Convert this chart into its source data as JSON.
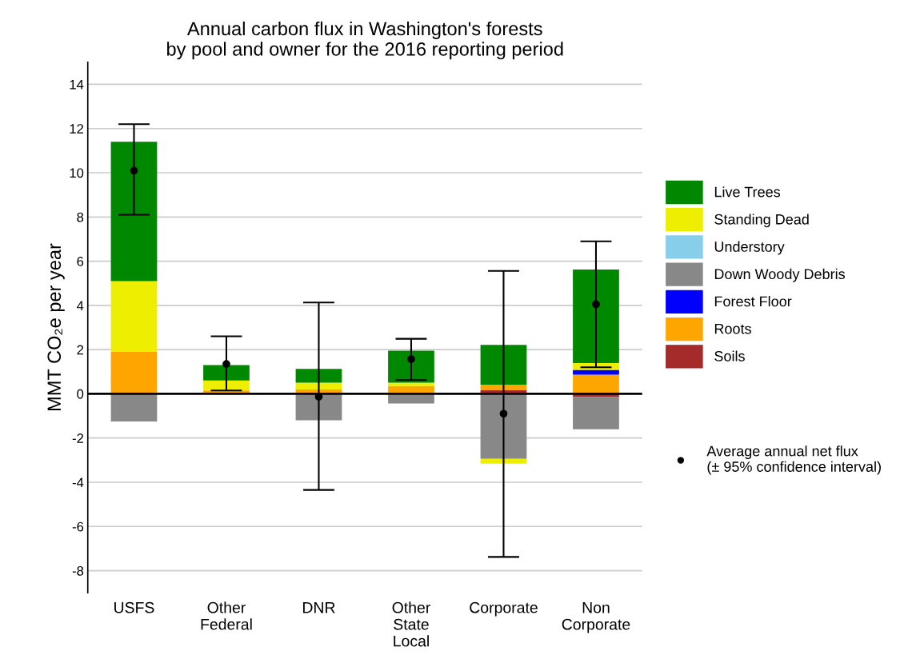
{
  "chart_data": {
    "type": "bar",
    "stacked": true,
    "title": "Annual carbon flux in Washington's forests\nby pool and owner for the 2016 reporting period",
    "ylabel": "MMT CO₂e per year",
    "categories": [
      "USFS",
      "Other\nFederal",
      "DNR",
      "Other\nState\nLocal",
      "Corporate",
      "Non\nCorporate"
    ],
    "series": [
      {
        "name": "Soils",
        "color": "#a52a2a",
        "values": [
          0,
          0,
          0,
          0.05,
          0.17,
          -0.15
        ]
      },
      {
        "name": "Roots",
        "color": "#ffa500",
        "values": [
          1.9,
          0.15,
          0.2,
          0.3,
          0.24,
          0.87
        ]
      },
      {
        "name": "Forest Floor",
        "color": "#0000ff",
        "values": [
          null,
          null,
          null,
          0,
          0,
          0.21
        ]
      },
      {
        "name": "Down Woody Debris",
        "color": "#888888",
        "values": [
          -1.25,
          0,
          -1.2,
          -0.44,
          -2.94,
          -1.45
        ]
      },
      {
        "name": "Understory",
        "color": "#87ceeb",
        "values": [
          0,
          0,
          0,
          0,
          0,
          0
        ]
      },
      {
        "name": "Standing Dead",
        "color": "#eeee00",
        "values": [
          3.2,
          0.45,
          0.3,
          0.15,
          -0.22,
          0.31
        ]
      },
      {
        "name": "Live Trees",
        "color": "#008800",
        "values": [
          6.3,
          0.7,
          0.63,
          1.45,
          1.8,
          4.23
        ]
      },
      {
        "name": "Average annual net flux",
        "type": "scatter",
        "color": "#000000",
        "marker": "circle",
        "x": [
          "USFS",
          "Other\nFederal",
          "DNR",
          "Other\nState\nLocal",
          "Corporate",
          "Non\nCorporate"
        ],
        "values": [
          10.1,
          1.35,
          -0.13,
          1.57,
          -0.9,
          4.05
        ],
        "errors": [
          [
            8.1,
            12.2
          ],
          [
            0.15,
            2.6
          ],
          [
            -4.35,
            4.13
          ],
          [
            0.62,
            2.49
          ],
          [
            -7.38,
            5.56
          ],
          [
            1.2,
            6.9
          ]
        ]
      }
    ],
    "annotations": [
      "(± 95% confidence interval)"
    ],
    "ylim": [
      -9,
      15
    ],
    "yticks": [
      -8,
      -6,
      -4,
      -2,
      0,
      2,
      4,
      6,
      8,
      10,
      12,
      14
    ],
    "ref_lines": [
      {
        "axis": "y",
        "value": 0,
        "color": "#000000"
      }
    ],
    "grid": "y",
    "legend": "right"
  }
}
